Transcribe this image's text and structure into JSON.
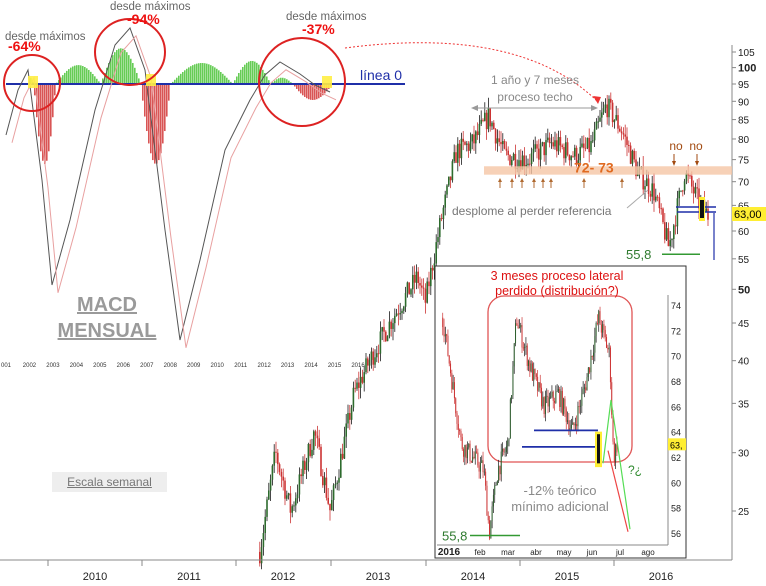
{
  "chart_data": {
    "type": "candlestick",
    "main": {
      "x_ticks": [
        "2010",
        "2011",
        "2012",
        "2013",
        "2014",
        "2015",
        "2016"
      ],
      "y_ticks": [
        105,
        100,
        95,
        90,
        85,
        80,
        75,
        70,
        65,
        60,
        55,
        50,
        45,
        40,
        35,
        30,
        25
      ],
      "last_price_label": "63,00",
      "weekly_scale_label": "Escala semanal",
      "weekly_close_approx": [
        {
          "x": "2011-10",
          "v": 22
        },
        {
          "x": "2011-12",
          "v": 30
        },
        {
          "x": "2012-02",
          "v": 25
        },
        {
          "x": "2012-05",
          "v": 32
        },
        {
          "x": "2012-07",
          "v": 25
        },
        {
          "x": "2012-10",
          "v": 36
        },
        {
          "x": "2012-12",
          "v": 40
        },
        {
          "x": "2013-03",
          "v": 46
        },
        {
          "x": "2013-06",
          "v": 52
        },
        {
          "x": "2013-07",
          "v": 48
        },
        {
          "x": "2013-09",
          "v": 62
        },
        {
          "x": "2013-11",
          "v": 77
        },
        {
          "x": "2014-01",
          "v": 79
        },
        {
          "x": "2014-03",
          "v": 86
        },
        {
          "x": "2014-05",
          "v": 76
        },
        {
          "x": "2014-08",
          "v": 75
        },
        {
          "x": "2014-11",
          "v": 79
        },
        {
          "x": "2015-02",
          "v": 76
        },
        {
          "x": "2015-04",
          "v": 78
        },
        {
          "x": "2015-06",
          "v": 89
        },
        {
          "x": "2015-08",
          "v": 82
        },
        {
          "x": "2015-10",
          "v": 72
        },
        {
          "x": "2015-12",
          "v": 68
        },
        {
          "x": "2016-02",
          "v": 57
        },
        {
          "x": "2016-04",
          "v": 72
        },
        {
          "x": "2016-06",
          "v": 65
        },
        {
          "x": "2016-07",
          "v": 63
        }
      ],
      "reference_zone": {
        "from": 72,
        "to": 73,
        "label": "72- 73"
      },
      "support_line": {
        "value": 55.8,
        "label": "55,8"
      }
    },
    "macd": {
      "title": "MACD\nMENSUAL",
      "zero_line_label": "línea 0",
      "x_ticks": [
        "001",
        "2002",
        "2003",
        "2004",
        "2005",
        "2006",
        "2007",
        "2008",
        "2009",
        "2010",
        "2011",
        "2012",
        "2013",
        "2014",
        "2015",
        "2016"
      ],
      "drops": [
        {
          "label": "desde máximos",
          "value": "-64%"
        },
        {
          "label": "desde máximos",
          "value": "-94%"
        },
        {
          "label": "desde máximos",
          "value": "-37%"
        }
      ]
    },
    "inset": {
      "title_line1": "3 meses proceso lateral",
      "title_line2": "perdido (distribución?)",
      "x_ticks": [
        "2016",
        "feb",
        "mar",
        "abr",
        "may",
        "jun",
        "jul",
        "ago"
      ],
      "y_ticks": [
        74,
        72,
        70,
        68,
        66,
        64,
        63,
        62,
        60,
        58,
        56
      ],
      "last_price_label": "63,",
      "target_text_line1": "-12% teórico",
      "target_text_line2": "mínimo adicional",
      "question_label": "?¿",
      "support_label": "55,8",
      "daily_close_approx": [
        {
          "x": "2016-01-05",
          "v": 73
        },
        {
          "x": "2016-01-15",
          "v": 68
        },
        {
          "x": "2016-01-25",
          "v": 63
        },
        {
          "x": "2016-02-05",
          "v": 61
        },
        {
          "x": "2016-02-11",
          "v": 56
        },
        {
          "x": "2016-02-20",
          "v": 61
        },
        {
          "x": "2016-03-01",
          "v": 63
        },
        {
          "x": "2016-03-10",
          "v": 73
        },
        {
          "x": "2016-03-25",
          "v": 69
        },
        {
          "x": "2016-04-10",
          "v": 66
        },
        {
          "x": "2016-04-25",
          "v": 67
        },
        {
          "x": "2016-05-10",
          "v": 64
        },
        {
          "x": "2016-05-25",
          "v": 68
        },
        {
          "x": "2016-06-08",
          "v": 73
        },
        {
          "x": "2016-06-20",
          "v": 70
        },
        {
          "x": "2016-06-24",
          "v": 62
        },
        {
          "x": "2016-06-28",
          "v": 63
        }
      ]
    },
    "annotations": {
      "techo_line1": "1 año y 7 meses",
      "techo_line2": "proceso techo",
      "desplome": "desplome al perder referencia",
      "no_label": "no"
    },
    "colors": {
      "bull": "#1a1a1a",
      "bear": "#cc3333",
      "histogram_pos": "#66cc55",
      "histogram_neg": "#d95555",
      "zero_line": "#1f2fa8",
      "circle": "#dd2222",
      "zone": "#f5c6a5",
      "support": "#339933"
    }
  }
}
